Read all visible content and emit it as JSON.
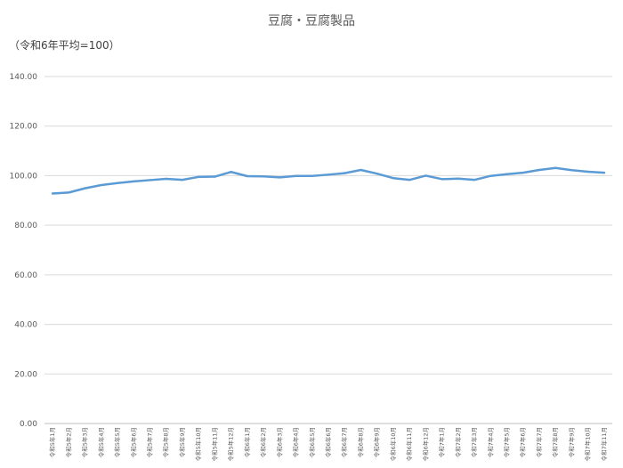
{
  "chart_data": {
    "type": "line",
    "title": "豆腐・豆腐製品",
    "subtitle": "（令和6年平均=100）",
    "ylim": [
      0,
      140
    ],
    "yticks": [
      "0.00",
      "20.00",
      "40.00",
      "60.00",
      "80.00",
      "100.00",
      "120.00",
      "140.00"
    ],
    "grid": true,
    "legend": "none",
    "colors": {
      "line": "#5b9bd5",
      "grid": "#d9d9d9",
      "axis": "#bfbfbf"
    },
    "categories": [
      "令和5年1月",
      "令和5年2月",
      "令和5年3月",
      "令和5年4月",
      "令和5年5月",
      "令和5年6月",
      "令和5年7月",
      "令和5年8月",
      "令和5年9月",
      "令和5年10月",
      "令和5年11月",
      "令和5年12月",
      "令和6年1月",
      "令和6年2月",
      "令和6年3月",
      "令和6年4月",
      "令和6年5月",
      "令和6年6月",
      "令和6年7月",
      "令和6年8月",
      "令和6年9月",
      "令和6年10月",
      "令和6年11月",
      "令和6年12月",
      "令和7年1月",
      "令和7年2月",
      "令和7年3月",
      "令和7年4月",
      "令和7年5月",
      "令和7年6月",
      "令和7年7月",
      "令和7年8月",
      "令和7年9月",
      "令和7年10月",
      "令和7年11月"
    ],
    "series": [
      {
        "values": [
          92.8,
          93.2,
          94.9,
          96.2,
          97.0,
          97.7,
          98.2,
          98.7,
          98.3,
          99.5,
          99.6,
          101.5,
          99.8,
          99.7,
          99.3,
          99.9,
          99.9,
          100.4,
          101.0,
          102.3,
          100.8,
          99.0,
          98.3,
          100.0,
          98.6,
          98.8,
          98.3,
          99.9,
          100.6,
          101.2,
          102.3,
          103.1,
          102.2,
          101.6,
          101.2
        ]
      }
    ]
  }
}
